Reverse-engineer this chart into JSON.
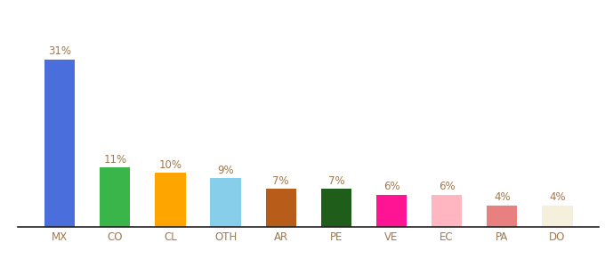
{
  "categories": [
    "MX",
    "CO",
    "CL",
    "OTH",
    "AR",
    "PE",
    "VE",
    "EC",
    "PA",
    "DO"
  ],
  "values": [
    31,
    11,
    10,
    9,
    7,
    7,
    6,
    6,
    4,
    4
  ],
  "bar_colors": [
    "#4a6fdc",
    "#3ab54a",
    "#ffa500",
    "#87ceeb",
    "#b85c1a",
    "#1e5e1a",
    "#ff1493",
    "#ffb6c1",
    "#e88080",
    "#f5f0dc"
  ],
  "labels": [
    "31%",
    "11%",
    "10%",
    "9%",
    "7%",
    "7%",
    "6%",
    "6%",
    "4%",
    "4%"
  ],
  "xlabel": "",
  "ylabel": "",
  "ylim": [
    0,
    38
  ],
  "background_color": "#ffffff",
  "label_color": "#a07850",
  "label_fontsize": 8.5,
  "tick_fontsize": 8.5,
  "tick_color": "#a07850",
  "bar_width": 0.55
}
